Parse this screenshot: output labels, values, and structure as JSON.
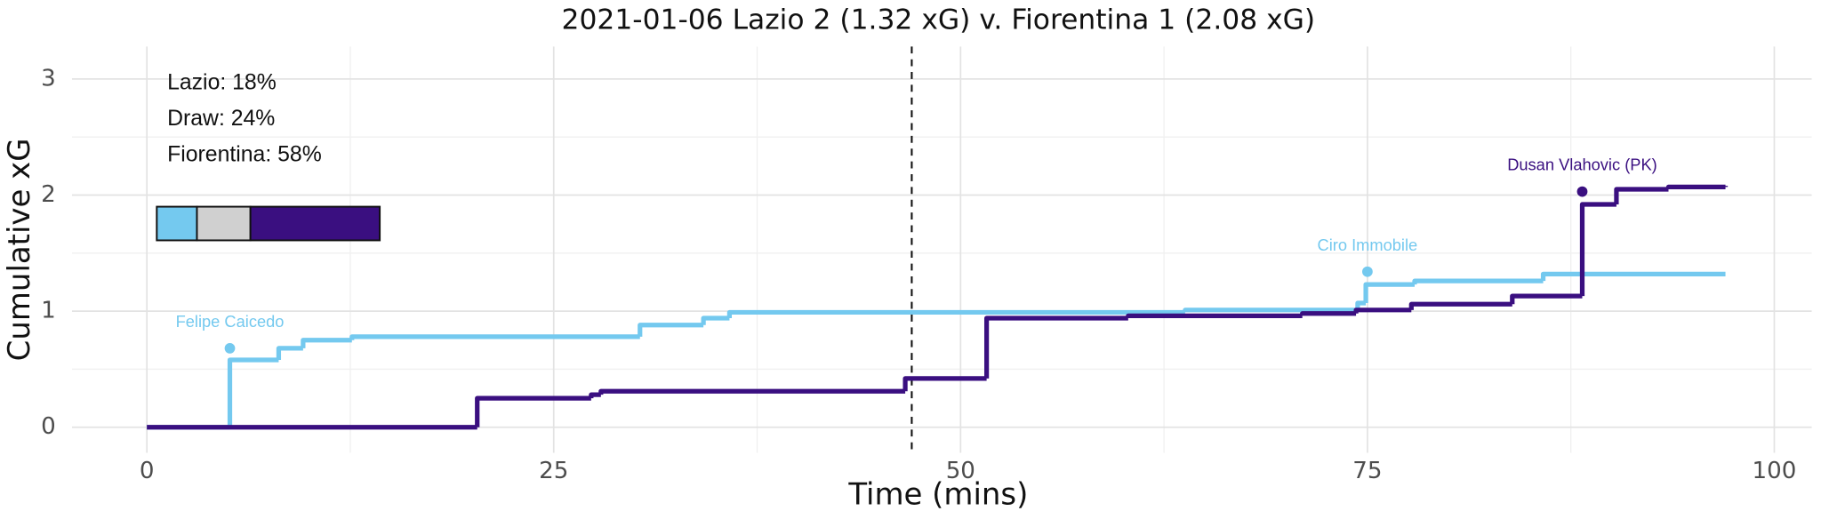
{
  "chart_data": {
    "type": "step",
    "title": "2021-01-06 Lazio 2 (1.32 xG) v. Fiorentina 1 (2.08 xG)",
    "x_label": "Time (mins)",
    "y_label": "Cumulative xG",
    "xlim": [
      -4.6,
      102.3
    ],
    "ylim": [
      -0.22,
      3.28
    ],
    "xticks": [
      0,
      25,
      50,
      75,
      100
    ],
    "yticks": [
      0,
      1,
      2,
      3
    ],
    "grid": true,
    "halftime_x": 47,
    "series": [
      {
        "name": "Lazio",
        "color": "#74c9ef",
        "x": [
          0,
          5.1,
          8.1,
          9.6,
          12.6,
          30.3,
          34.2,
          35.8,
          63.8,
          74.4,
          74.9,
          77.9,
          85.8,
          97
        ],
        "values": [
          0,
          0.58,
          0.68,
          0.75,
          0.78,
          0.88,
          0.94,
          0.99,
          1.01,
          1.07,
          1.23,
          1.26,
          1.32,
          1.32
        ]
      },
      {
        "name": "Fiorentina",
        "color": "#3a0f80",
        "x": [
          0,
          20.3,
          27.3,
          27.9,
          46.6,
          51.6,
          60.3,
          71,
          74.3,
          77.7,
          83.9,
          88.2,
          90.3,
          93.5,
          97
        ],
        "values": [
          0,
          0.25,
          0.28,
          0.31,
          0.42,
          0.94,
          0.96,
          0.98,
          1.01,
          1.06,
          1.13,
          1.92,
          2.05,
          2.07,
          2.08
        ]
      }
    ],
    "goals": [
      {
        "label": "Felipe Caicedo",
        "x": 5.1,
        "y": 0.68,
        "color": "#74c9ef"
      },
      {
        "label": "Ciro Immobile",
        "x": 75,
        "y": 1.34,
        "color": "#74c9ef"
      },
      {
        "label": "Dusan Vlahovic (PK)",
        "x": 88.2,
        "y": 2.03,
        "color": "#3a0f80"
      }
    ],
    "probabilities": [
      {
        "label": "Lazio: 18%",
        "value": 18,
        "color": "#74c9ef"
      },
      {
        "label": "Draw: 24%",
        "value": 24,
        "color": "#d0d0d0"
      },
      {
        "label": "Fiorentina: 58%",
        "value": 58,
        "color": "#3a0f80"
      }
    ]
  }
}
